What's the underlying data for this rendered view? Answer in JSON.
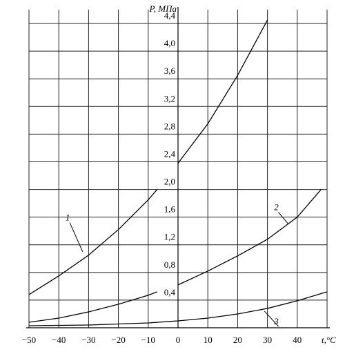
{
  "chart_data": {
    "type": "line",
    "ylabel": "P, МПа",
    "xlabel": "t,°C",
    "xlim": [
      -50,
      50
    ],
    "xticks": [
      {
        "value": -50,
        "label": "−50"
      },
      {
        "value": -40,
        "label": "−40"
      },
      {
        "value": -30,
        "label": "−30"
      },
      {
        "value": -20,
        "label": "−20"
      },
      {
        "value": -10,
        "label": "−10"
      },
      0,
      10,
      20,
      30,
      40
    ],
    "ylim": [
      0,
      4.6
    ],
    "yticks": [
      {
        "value": 0.4,
        "label": "0,4"
      },
      {
        "value": 0.8,
        "label": "0,8"
      },
      {
        "value": 1.2,
        "label": "1,2"
      },
      {
        "value": 1.6,
        "label": "1,6"
      },
      {
        "value": 2.0,
        "label": "2,0"
      },
      {
        "value": 2.4,
        "label": "2,4"
      },
      {
        "value": 2.8,
        "label": "2,8"
      },
      {
        "value": 3.2,
        "label": "3,2"
      },
      {
        "value": 3.6,
        "label": "3,6"
      },
      {
        "value": 4.0,
        "label": "4,0"
      },
      {
        "value": 4.4,
        "label": "4,4"
      }
    ],
    "grid": true,
    "color": "#000000",
    "series": [
      {
        "label": "1",
        "x": [
          -50,
          -40,
          -30,
          -20,
          -10,
          -7
        ],
        "values": [
          0.48,
          0.75,
          1.05,
          1.42,
          1.85,
          2.0
        ]
      },
      {
        "x": [
          0,
          10,
          20,
          30
        ],
        "values": [
          2.38,
          2.95,
          3.65,
          4.45
        ]
      },
      {
        "x": [
          -50,
          -40,
          -30,
          -20,
          -10,
          -7
        ],
        "values": [
          0.08,
          0.14,
          0.23,
          0.34,
          0.47,
          0.52
        ]
      },
      {
        "label": "2",
        "x": [
          0,
          10,
          20,
          30,
          40,
          48
        ],
        "values": [
          0.62,
          0.82,
          1.04,
          1.28,
          1.6,
          2.0
        ]
      },
      {
        "label": "3",
        "x": [
          -50,
          -30,
          -10,
          0,
          10,
          20,
          30,
          40,
          50
        ],
        "values": [
          0.03,
          0.04,
          0.07,
          0.1,
          0.14,
          0.2,
          0.28,
          0.39,
          0.52
        ]
      }
    ]
  }
}
